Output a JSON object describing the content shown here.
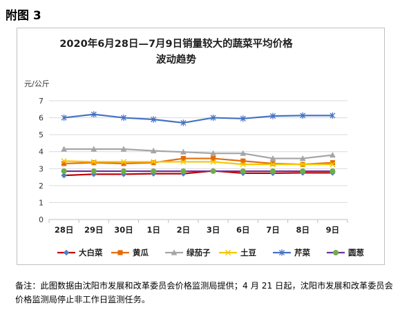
{
  "figure_label": "附图 3",
  "note": "备注：此图数据由沈阳市发展和改革委员会价格监测局提供；4 月 21 日起，沈阳市发展和改革委员会价格监测局停止非工作日监测任务。",
  "chart_data": {
    "type": "line",
    "title_line1": "2020年6月28日—7月9日销量较大的蔬菜平均价格",
    "title_line2": "波动趋势",
    "ylabel": "元/公斤",
    "xlabel": "",
    "categories": [
      "28日",
      "29日",
      "30日",
      "1日",
      "2日",
      "3日",
      "6日",
      "7日",
      "8日",
      "9日"
    ],
    "ylim": [
      0,
      7
    ],
    "yticks": [
      0,
      1,
      2,
      3,
      4,
      5,
      6,
      7
    ],
    "grid": true,
    "legend_position": "bottom",
    "series": [
      {
        "name": "大白菜",
        "color": "#c00000",
        "marker": "diamond",
        "marker_color": "#4f81bd",
        "values": [
          2.6,
          2.67,
          2.67,
          2.7,
          2.7,
          2.87,
          2.73,
          2.73,
          2.75,
          2.75
        ]
      },
      {
        "name": "黄瓜",
        "color": "#e36c09",
        "marker": "square",
        "marker_color": "#e36c09",
        "values": [
          3.3,
          3.35,
          3.3,
          3.35,
          3.6,
          3.6,
          3.45,
          3.3,
          3.25,
          3.35
        ]
      },
      {
        "name": "绿茄子",
        "color": "#a5a5a5",
        "marker": "triangle",
        "marker_color": "#a5a5a5",
        "values": [
          4.15,
          4.15,
          4.15,
          4.05,
          3.98,
          3.9,
          3.9,
          3.6,
          3.6,
          3.8
        ]
      },
      {
        "name": "土豆",
        "color": "#f7c600",
        "marker": "x",
        "marker_color": "#f7c600",
        "values": [
          3.45,
          3.4,
          3.4,
          3.4,
          3.4,
          3.4,
          3.25,
          3.25,
          3.25,
          3.25
        ]
      },
      {
        "name": "芹菜",
        "color": "#4472c4",
        "marker": "star",
        "marker_color": "#4472c4",
        "values": [
          6.0,
          6.2,
          6.0,
          5.9,
          5.7,
          6.0,
          5.95,
          6.1,
          6.13,
          6.13
        ]
      },
      {
        "name": "圆葱",
        "color": "#7030a0",
        "marker": "circle",
        "marker_color": "#70ad47",
        "values": [
          2.85,
          2.85,
          2.85,
          2.85,
          2.85,
          2.85,
          2.85,
          2.85,
          2.85,
          2.85
        ]
      }
    ]
  }
}
